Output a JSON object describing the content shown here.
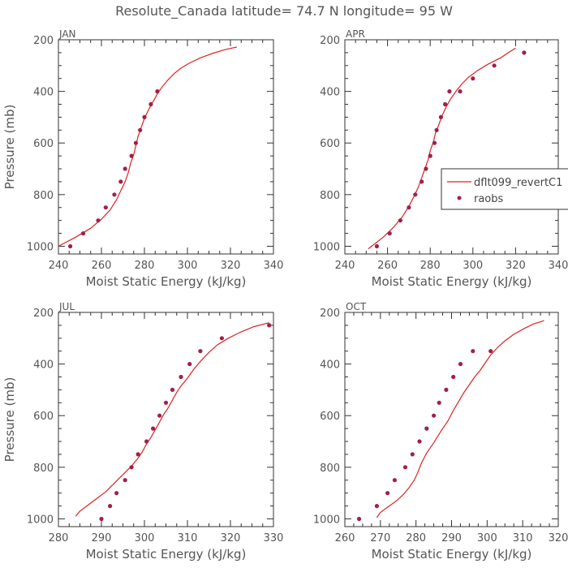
{
  "title": "Resolute_Canada  latitude= 74.7 N longitude= 95 W",
  "legend": {
    "model": "dflt099_revertC1",
    "obs": "raobs"
  },
  "colors": {
    "model": "#dd2222",
    "obs": "#a0204a"
  },
  "chart_data": [
    {
      "type": "line",
      "panel": "JAN",
      "xlabel": "Moist Static Energy (kJ/kg)",
      "ylabel": "Pressure (mb)",
      "xlim": [
        240,
        340
      ],
      "xticks": [
        240,
        260,
        280,
        300,
        320,
        340
      ],
      "ylim": [
        200,
        1030
      ],
      "yticks": [
        200,
        400,
        600,
        800,
        1000
      ],
      "y_inverted": true,
      "series": [
        {
          "kind": "line",
          "points": [
            [
              240,
              1000
            ],
            [
              248,
              965
            ],
            [
              255,
              930
            ],
            [
              260,
              895
            ],
            [
              264,
              860
            ],
            [
              267,
              820
            ],
            [
              269,
              785
            ],
            [
              271,
              750
            ],
            [
              272.5,
              715
            ],
            [
              273.5,
              680
            ],
            [
              275,
              645
            ],
            [
              276,
              610
            ],
            [
              277,
              575
            ],
            [
              278.5,
              540
            ],
            [
              280,
              505
            ],
            [
              282,
              470
            ],
            [
              284,
              440
            ],
            [
              286,
              410
            ],
            [
              288,
              385
            ],
            [
              291,
              355
            ],
            [
              294,
              330
            ],
            [
              297,
              310
            ],
            [
              301,
              290
            ],
            [
              306,
              270
            ],
            [
              312,
              252
            ],
            [
              318,
              237
            ],
            [
              323,
              228
            ]
          ]
        },
        {
          "kind": "scatter",
          "points": [
            [
              245.5,
              1000
            ],
            [
              251.5,
              950
            ],
            [
              258.5,
              900
            ],
            [
              262,
              850
            ],
            [
              266,
              800
            ],
            [
              269,
              750
            ],
            [
              271,
              700
            ],
            [
              274,
              650
            ],
            [
              276,
              600
            ],
            [
              278,
              550
            ],
            [
              280,
              500
            ],
            [
              283,
              450
            ],
            [
              286,
              400
            ]
          ]
        }
      ]
    },
    {
      "type": "line",
      "panel": "APR",
      "xlabel": "Moist Static Energy (kJ/kg)",
      "ylabel": "",
      "xlim": [
        240,
        340
      ],
      "xticks": [
        240,
        260,
        280,
        300,
        320,
        340
      ],
      "ylim": [
        200,
        1030
      ],
      "yticks": [
        200,
        400,
        600,
        800,
        1000
      ],
      "y_inverted": true,
      "series": [
        {
          "kind": "line",
          "points": [
            [
              251,
              1010
            ],
            [
              258,
              965
            ],
            [
              263,
              925
            ],
            [
              267,
              885
            ],
            [
              270,
              845
            ],
            [
              272.5,
              805
            ],
            [
              274.5,
              770
            ],
            [
              276,
              735
            ],
            [
              277.5,
              700
            ],
            [
              279,
              665
            ],
            [
              280,
              630
            ],
            [
              281.5,
              595
            ],
            [
              282.5,
              560
            ],
            [
              284,
              530
            ],
            [
              285.5,
              495
            ],
            [
              287.5,
              460
            ],
            [
              289.5,
              430
            ],
            [
              292,
              400
            ],
            [
              295,
              370
            ],
            [
              298,
              345
            ],
            [
              302,
              320
            ],
            [
              307,
              295
            ],
            [
              313,
              270
            ],
            [
              317,
              248
            ],
            [
              320,
              232
            ]
          ]
        },
        {
          "kind": "scatter",
          "points": [
            [
              255,
              1000
            ],
            [
              261,
              950
            ],
            [
              266,
              900
            ],
            [
              270,
              850
            ],
            [
              273,
              800
            ],
            [
              276,
              750
            ],
            [
              278,
              700
            ],
            [
              280,
              650
            ],
            [
              282,
              600
            ],
            [
              283,
              550
            ],
            [
              285,
              500
            ],
            [
              287,
              450
            ],
            [
              289,
              400
            ],
            [
              294,
              400
            ],
            [
              300,
              350
            ],
            [
              310,
              300
            ],
            [
              324,
              250
            ]
          ]
        }
      ]
    },
    {
      "type": "line",
      "panel": "JUL",
      "xlabel": "Moist Static Energy (kJ/kg)",
      "ylabel": "Pressure (mb)",
      "xlim": [
        280,
        330
      ],
      "xticks": [
        280,
        290,
        300,
        310,
        320,
        330
      ],
      "ylim": [
        200,
        1030
      ],
      "yticks": [
        200,
        400,
        600,
        800,
        1000
      ],
      "y_inverted": true,
      "series": [
        {
          "kind": "line",
          "points": [
            [
              284,
              990
            ],
            [
              285,
              970
            ],
            [
              287,
              945
            ],
            [
              289,
              920
            ],
            [
              291,
              895
            ],
            [
              292.5,
              870
            ],
            [
              294,
              845
            ],
            [
              295.5,
              820
            ],
            [
              297,
              795
            ],
            [
              298.5,
              765
            ],
            [
              299.5,
              740
            ],
            [
              300.5,
              710
            ],
            [
              301.5,
              685
            ],
            [
              302.5,
              655
            ],
            [
              303.5,
              625
            ],
            [
              304.5,
              595
            ],
            [
              305.5,
              570
            ],
            [
              306.5,
              540
            ],
            [
              307.5,
              510
            ],
            [
              308.5,
              485
            ],
            [
              310,
              455
            ],
            [
              311.5,
              420
            ],
            [
              313,
              390
            ],
            [
              315,
              355
            ],
            [
              317,
              325
            ],
            [
              319.5,
              300
            ],
            [
              322.5,
              275
            ],
            [
              325.5,
              255
            ],
            [
              329,
              240
            ]
          ]
        },
        {
          "kind": "scatter",
          "points": [
            [
              290,
              1000
            ],
            [
              292,
              950
            ],
            [
              293.5,
              900
            ],
            [
              295.5,
              850
            ],
            [
              297,
              800
            ],
            [
              298.5,
              750
            ],
            [
              300.5,
              700
            ],
            [
              302,
              650
            ],
            [
              303.5,
              600
            ],
            [
              305,
              550
            ],
            [
              306.5,
              500
            ],
            [
              308.5,
              450
            ],
            [
              310.5,
              400
            ],
            [
              313,
              350
            ],
            [
              318,
              300
            ],
            [
              329,
              250
            ]
          ]
        }
      ]
    },
    {
      "type": "line",
      "panel": "OCT",
      "xlabel": "Moist Static Energy (kJ/kg)",
      "ylabel": "",
      "xlim": [
        260,
        320
      ],
      "xticks": [
        260,
        270,
        280,
        290,
        300,
        310,
        320
      ],
      "ylim": [
        200,
        1030
      ],
      "yticks": [
        200,
        400,
        600,
        800,
        1000
      ],
      "y_inverted": true,
      "series": [
        {
          "kind": "line",
          "points": [
            [
              269,
              995
            ],
            [
              270,
              975
            ],
            [
              272,
              955
            ],
            [
              274.5,
              930
            ],
            [
              276.5,
              905
            ],
            [
              278,
              880
            ],
            [
              279.5,
              850
            ],
            [
              280.5,
              820
            ],
            [
              281.5,
              785
            ],
            [
              283,
              745
            ],
            [
              285,
              705
            ],
            [
              287,
              660
            ],
            [
              289,
              620
            ],
            [
              290.5,
              580
            ],
            [
              292,
              545
            ],
            [
              293.5,
              510
            ],
            [
              295,
              480
            ],
            [
              296.5,
              450
            ],
            [
              298,
              425
            ],
            [
              299.5,
              395
            ],
            [
              301,
              365
            ],
            [
              303,
              335
            ],
            [
              305,
              310
            ],
            [
              307.5,
              285
            ],
            [
              310.5,
              262
            ],
            [
              313,
              245
            ],
            [
              316,
              232
            ]
          ]
        },
        {
          "kind": "scatter",
          "points": [
            [
              264,
              1000
            ],
            [
              269,
              950
            ],
            [
              272,
              900
            ],
            [
              274,
              850
            ],
            [
              277,
              800
            ],
            [
              279,
              750
            ],
            [
              281,
              700
            ],
            [
              283,
              650
            ],
            [
              285,
              600
            ],
            [
              286.5,
              550
            ],
            [
              288.5,
              500
            ],
            [
              290.5,
              450
            ],
            [
              292.5,
              400
            ],
            [
              296,
              350
            ],
            [
              301,
              350
            ]
          ]
        }
      ]
    }
  ]
}
